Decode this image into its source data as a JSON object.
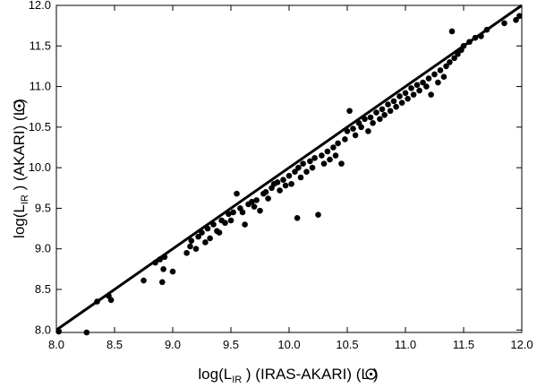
{
  "chart_data": {
    "type": "scatter",
    "title": "",
    "xlabel": {
      "prefix": "log(L",
      "sub": "IR",
      "mid": " ) (IRAS-AKARI) (L",
      "suffix": ")"
    },
    "ylabel": {
      "prefix": "log(L",
      "sub": "IR",
      "mid": " ) (AKARI) (L",
      "suffix": ")"
    },
    "sun_symbol": "sun-symbol-icon",
    "xlim": [
      8.0,
      12.0
    ],
    "ylim": [
      7.97,
      12.0
    ],
    "xticks": [
      "8.0",
      "8.5",
      "9.0",
      "9.5",
      "10.0",
      "10.5",
      "11.0",
      "11.5",
      "12.0"
    ],
    "yticks": [
      "8.0",
      "8.5",
      "9.0",
      "9.5",
      "10.0",
      "10.5",
      "11.0",
      "11.5",
      "12.0"
    ],
    "xtick_values": [
      8.0,
      8.5,
      9.0,
      9.5,
      10.0,
      10.5,
      11.0,
      11.5,
      12.0
    ],
    "ytick_values": [
      8.0,
      8.5,
      9.0,
      9.5,
      10.0,
      10.5,
      11.0,
      11.5,
      12.0
    ],
    "grid": false,
    "reference_line": {
      "x": [
        8.0,
        12.0
      ],
      "y": [
        8.0,
        12.0
      ]
    },
    "marker_color": "#000000",
    "points": [
      [
        8.02,
        7.98
      ],
      [
        8.26,
        7.97
      ],
      [
        8.35,
        8.35
      ],
      [
        8.45,
        8.42
      ],
      [
        8.47,
        8.37
      ],
      [
        8.75,
        8.61
      ],
      [
        8.85,
        8.83
      ],
      [
        8.89,
        8.87
      ],
      [
        8.91,
        8.59
      ],
      [
        8.92,
        8.75
      ],
      [
        8.93,
        8.9
      ],
      [
        9.0,
        8.72
      ],
      [
        9.12,
        8.95
      ],
      [
        9.15,
        9.03
      ],
      [
        9.16,
        9.1
      ],
      [
        9.2,
        9.0
      ],
      [
        9.22,
        9.15
      ],
      [
        9.25,
        9.2
      ],
      [
        9.28,
        9.08
      ],
      [
        9.3,
        9.25
      ],
      [
        9.32,
        9.13
      ],
      [
        9.35,
        9.3
      ],
      [
        9.38,
        9.22
      ],
      [
        9.4,
        9.2
      ],
      [
        9.42,
        9.35
      ],
      [
        9.45,
        9.32
      ],
      [
        9.48,
        9.43
      ],
      [
        9.5,
        9.35
      ],
      [
        9.52,
        9.45
      ],
      [
        9.55,
        9.68
      ],
      [
        9.58,
        9.5
      ],
      [
        9.6,
        9.45
      ],
      [
        9.62,
        9.3
      ],
      [
        9.65,
        9.55
      ],
      [
        9.68,
        9.58
      ],
      [
        9.7,
        9.52
      ],
      [
        9.72,
        9.6
      ],
      [
        9.75,
        9.47
      ],
      [
        9.78,
        9.68
      ],
      [
        9.8,
        9.7
      ],
      [
        9.82,
        9.62
      ],
      [
        9.85,
        9.75
      ],
      [
        9.87,
        9.8
      ],
      [
        9.9,
        9.82
      ],
      [
        9.92,
        9.72
      ],
      [
        9.95,
        9.85
      ],
      [
        9.97,
        9.78
      ],
      [
        10.0,
        9.9
      ],
      [
        10.02,
        9.8
      ],
      [
        10.05,
        9.95
      ],
      [
        10.07,
        9.38
      ],
      [
        10.08,
        10.0
      ],
      [
        10.1,
        9.88
      ],
      [
        10.12,
        10.05
      ],
      [
        10.15,
        9.95
      ],
      [
        10.18,
        10.08
      ],
      [
        10.2,
        10.0
      ],
      [
        10.22,
        10.12
      ],
      [
        10.25,
        9.42
      ],
      [
        10.28,
        10.15
      ],
      [
        10.3,
        10.05
      ],
      [
        10.33,
        10.2
      ],
      [
        10.35,
        10.1
      ],
      [
        10.38,
        10.25
      ],
      [
        10.4,
        10.15
      ],
      [
        10.42,
        10.3
      ],
      [
        10.45,
        10.05
      ],
      [
        10.48,
        10.35
      ],
      [
        10.5,
        10.45
      ],
      [
        10.52,
        10.7
      ],
      [
        10.55,
        10.48
      ],
      [
        10.57,
        10.4
      ],
      [
        10.6,
        10.55
      ],
      [
        10.62,
        10.5
      ],
      [
        10.65,
        10.6
      ],
      [
        10.68,
        10.45
      ],
      [
        10.7,
        10.62
      ],
      [
        10.72,
        10.55
      ],
      [
        10.75,
        10.68
      ],
      [
        10.78,
        10.6
      ],
      [
        10.8,
        10.72
      ],
      [
        10.82,
        10.65
      ],
      [
        10.85,
        10.78
      ],
      [
        10.87,
        10.7
      ],
      [
        10.9,
        10.82
      ],
      [
        10.92,
        10.75
      ],
      [
        10.95,
        10.88
      ],
      [
        10.97,
        10.8
      ],
      [
        11.0,
        10.92
      ],
      [
        11.02,
        10.85
      ],
      [
        11.05,
        10.98
      ],
      [
        11.07,
        10.9
      ],
      [
        11.1,
        11.02
      ],
      [
        11.12,
        10.95
      ],
      [
        11.15,
        11.05
      ],
      [
        11.18,
        11.0
      ],
      [
        11.2,
        11.1
      ],
      [
        11.22,
        10.9
      ],
      [
        11.25,
        11.15
      ],
      [
        11.28,
        11.05
      ],
      [
        11.3,
        11.2
      ],
      [
        11.33,
        11.12
      ],
      [
        11.35,
        11.25
      ],
      [
        11.38,
        11.3
      ],
      [
        11.4,
        11.68
      ],
      [
        11.42,
        11.35
      ],
      [
        11.45,
        11.4
      ],
      [
        11.48,
        11.45
      ],
      [
        11.5,
        11.5
      ],
      [
        11.55,
        11.55
      ],
      [
        11.6,
        11.6
      ],
      [
        11.65,
        11.62
      ],
      [
        11.7,
        11.7
      ],
      [
        11.85,
        11.78
      ],
      [
        11.95,
        11.82
      ],
      [
        11.98,
        11.87
      ]
    ]
  }
}
